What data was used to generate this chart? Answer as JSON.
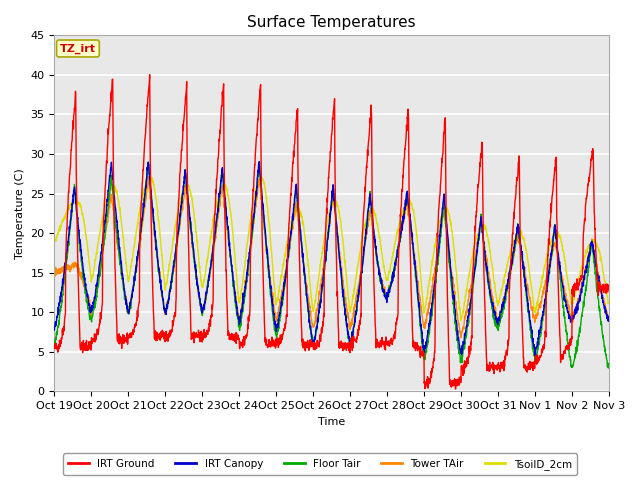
{
  "title": "Surface Temperatures",
  "ylabel": "Temperature (C)",
  "xlabel": "Time",
  "annotation_text": "TZ_irt",
  "annotation_color": "#cc0000",
  "annotation_bg": "#ffffcc",
  "annotation_border": "#aaa800",
  "ylim": [
    0,
    45
  ],
  "legend_entries": [
    {
      "label": "IRT Ground",
      "color": "#ff0000"
    },
    {
      "label": "IRT Canopy",
      "color": "#0000cc"
    },
    {
      "label": "Floor Tair",
      "color": "#00aa00"
    },
    {
      "label": "Tower TAir",
      "color": "#ff8800"
    },
    {
      "label": "TsoilD_2cm",
      "color": "#dddd00"
    }
  ],
  "xtick_labels": [
    "Oct 19",
    "Oct 20",
    "Oct 21",
    "Oct 22",
    "Oct 23",
    "Oct 24",
    "Oct 25",
    "Oct 26",
    "Oct 27",
    "Oct 28",
    "Oct 29",
    "Oct 30",
    "Oct 31",
    "Nov 1",
    "Nov 2",
    "Nov 3"
  ],
  "background_color": "#e8e8e8",
  "grid_color": "#ffffff",
  "fig_bg": "#ffffff",
  "n_days": 15,
  "red_peaks": [
    38,
    40,
    40,
    39,
    39,
    39,
    36,
    37,
    36,
    36,
    35,
    32,
    30,
    30,
    31
  ],
  "red_mins": [
    5.5,
    6.5,
    7,
    7,
    7,
    6,
    6,
    5.5,
    6,
    6,
    0.8,
    3,
    3,
    4,
    13
  ],
  "blue_peaks": [
    26,
    29,
    29,
    28,
    28,
    29,
    26,
    26,
    25,
    25,
    25,
    22,
    21,
    21,
    19
  ],
  "blue_mins": [
    8,
    10,
    10,
    10,
    10,
    9,
    8,
    6,
    6,
    12,
    5,
    5,
    9,
    5,
    9
  ],
  "green_peaks": [
    26,
    27,
    29,
    28,
    28,
    29,
    26,
    26,
    25,
    25,
    24,
    22,
    21,
    21,
    19
  ],
  "green_mins": [
    6,
    9,
    10,
    10,
    10,
    8,
    7,
    6,
    6,
    12,
    4,
    4,
    8,
    4,
    3
  ],
  "orange_peaks": [
    16,
    25,
    27,
    26,
    26,
    27,
    24,
    25,
    23,
    24,
    23,
    22,
    20,
    19,
    19
  ],
  "orange_mins": [
    15,
    10,
    10,
    10,
    10,
    9,
    9,
    8,
    8,
    12,
    8,
    7,
    9,
    9,
    9
  ],
  "yellow_peaks": [
    24,
    26,
    27,
    26,
    26,
    27,
    23,
    24,
    23,
    24,
    23,
    21,
    20,
    20,
    19
  ],
  "yellow_mins": [
    19,
    14,
    14,
    13,
    13,
    11,
    11,
    10,
    10,
    14,
    10,
    9,
    11,
    10,
    11
  ]
}
